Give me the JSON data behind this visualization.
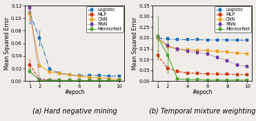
{
  "epochs": [
    1,
    2,
    3,
    4,
    5,
    6,
    7,
    8,
    9,
    10
  ],
  "plot_a": {
    "title": "(a) Hard negative mining",
    "ylabel": "Mean Squared Error",
    "xlabel": "#epoch",
    "ylim": [
      0,
      0.12
    ],
    "yticks": [
      0,
      0.02,
      0.04,
      0.06,
      0.08,
      0.1,
      0.12
    ],
    "Logistic": [
      0.108,
      0.068,
      0.019,
      0.013,
      0.01,
      0.009,
      0.009,
      0.009,
      0.008,
      0.008
    ],
    "Logistic_err": [
      0.016,
      0.012,
      0.003,
      0.002,
      0.001,
      0.001,
      0.001,
      0.001,
      0.001,
      0.001
    ],
    "MLP": [
      0.026,
      0.003,
      0.002,
      0.001,
      0.001,
      0.001,
      0.001,
      0.001,
      0.001,
      0.001
    ],
    "MLP_err": [
      0.008,
      0.001,
      0.0005,
      0.0005,
      0.0005,
      0.0005,
      0.0005,
      0.0005,
      0.0005,
      0.0005
    ],
    "CNN": [
      0.107,
      0.025,
      0.015,
      0.012,
      0.01,
      0.008,
      0.006,
      0.005,
      0.004,
      0.003
    ],
    "CNN_err": [
      0.01,
      0.004,
      0.002,
      0.002,
      0.001,
      0.001,
      0.001,
      0.001,
      0.001,
      0.001
    ],
    "RNN": [
      0.117,
      0.003,
      0.002,
      0.001,
      0.001,
      0.001,
      0.001,
      0.001,
      0.001,
      0.001
    ],
    "RNN_err": [
      0.005,
      0.001,
      0.0005,
      0.0005,
      0.0005,
      0.0005,
      0.0005,
      0.0005,
      0.0005,
      0.0005
    ],
    "MentorNet": [
      0.016,
      0.001,
      0.001,
      0.001,
      0.001,
      0.001,
      0.001,
      0.001,
      0.001,
      0.001
    ],
    "MentorNet_err": [
      0.004,
      0.001,
      0.0005,
      0.0005,
      0.0005,
      0.0005,
      0.0005,
      0.0005,
      0.0005,
      0.0005
    ]
  },
  "plot_b": {
    "title": "(b) Temporal mixture weighting",
    "ylabel": "Mean Squared Error",
    "xlabel": "#epoch",
    "ylim": [
      0,
      0.35
    ],
    "yticks": [
      0,
      0.05,
      0.1,
      0.15,
      0.2,
      0.25,
      0.3,
      0.35
    ],
    "Logistic": [
      0.2,
      0.195,
      0.193,
      0.192,
      0.192,
      0.191,
      0.191,
      0.191,
      0.19,
      0.19
    ],
    "Logistic_err": [
      0.005,
      0.003,
      0.003,
      0.003,
      0.003,
      0.003,
      0.003,
      0.003,
      0.003,
      0.003
    ],
    "MLP": [
      0.12,
      0.06,
      0.045,
      0.038,
      0.036,
      0.034,
      0.033,
      0.032,
      0.031,
      0.03
    ],
    "MLP_err": [
      0.018,
      0.007,
      0.005,
      0.004,
      0.003,
      0.003,
      0.003,
      0.003,
      0.003,
      0.003
    ],
    "CNN": [
      0.2,
      0.16,
      0.15,
      0.145,
      0.143,
      0.142,
      0.138,
      0.135,
      0.13,
      0.127
    ],
    "CNN_err": [
      0.014,
      0.009,
      0.007,
      0.007,
      0.006,
      0.006,
      0.006,
      0.006,
      0.005,
      0.005
    ],
    "RNN": [
      0.205,
      0.165,
      0.148,
      0.138,
      0.133,
      0.125,
      0.11,
      0.095,
      0.075,
      0.068
    ],
    "RNN_err": [
      0.012,
      0.01,
      0.008,
      0.007,
      0.006,
      0.006,
      0.005,
      0.005,
      0.005,
      0.005
    ],
    "MentorNet": [
      0.205,
      0.12,
      0.01,
      0.008,
      0.007,
      0.005,
      0.005,
      0.005,
      0.005,
      0.005
    ],
    "MentorNet_err": [
      0.095,
      0.085,
      0.005,
      0.003,
      0.003,
      0.003,
      0.003,
      0.003,
      0.003,
      0.003
    ]
  },
  "colors": {
    "Logistic": "#1f6cb5",
    "MLP": "#cc3300",
    "CNN": "#e8a020",
    "RNN": "#7030a0",
    "MentorNet": "#4aa030"
  },
  "linestyles": {
    "Logistic": "-.",
    "MLP": "--",
    "CNN": "-",
    "RNN": ":",
    "MentorNet": "-"
  },
  "bg_color": "#f0ede8",
  "subtitle_fontsize": 7.0,
  "legend_fontsize": 4.8,
  "tick_labelsize": 5.0,
  "axis_labelsize": 5.5
}
